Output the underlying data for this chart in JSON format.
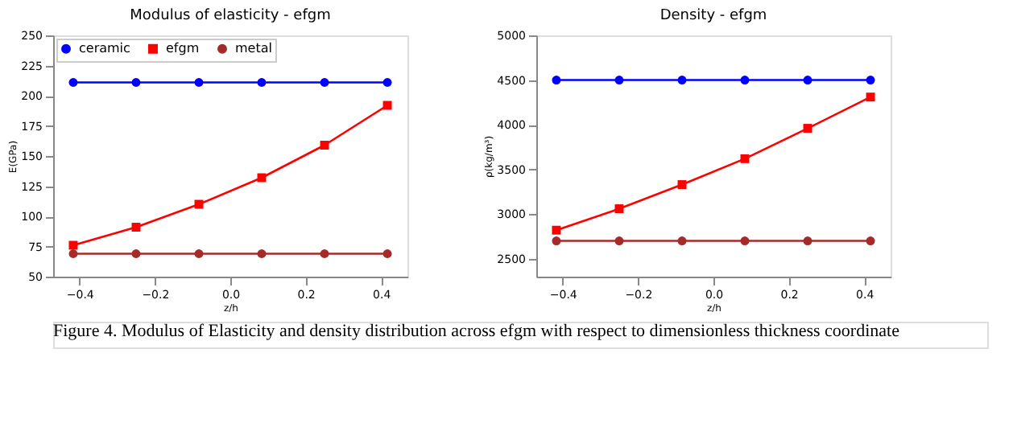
{
  "chart_data": [
    {
      "type": "line",
      "title": "Modulus of elasticity - efgm",
      "xlabel": "z/h",
      "ylabel": "E(GPa)",
      "x": [
        -0.4167,
        -0.25,
        -0.0833,
        0.0833,
        0.25,
        0.4167
      ],
      "xlim": [
        -0.47,
        0.47
      ],
      "xticks": [
        -0.4,
        -0.2,
        {
          "value": 0,
          "label": "0.0"
        },
        0.2,
        0.4
      ],
      "ylim": [
        50,
        250
      ],
      "yticks": [
        50,
        75,
        100,
        125,
        150,
        175,
        200,
        225,
        250
      ],
      "grid": false,
      "legend": "top left",
      "series": [
        {
          "name": "ceramic",
          "color": "#0000ff",
          "marker": "circle",
          "values": [
            211,
            211,
            211,
            211,
            211,
            211
          ]
        },
        {
          "name": "efgm",
          "color": "#ff0000",
          "marker": "square",
          "values": [
            76,
            91,
            110,
            132,
            159,
            192
          ]
        },
        {
          "name": "metal",
          "color": "#a52a2a",
          "marker": "circle",
          "values": [
            69,
            69,
            69,
            69,
            69,
            69
          ]
        }
      ],
      "annotations": [
        "Figure 4. Modulus of Elasticity and density distribution across efgm with respect to dimensionless thickness coordinate"
      ]
    },
    {
      "type": "line",
      "title": "Density - efgm",
      "xlabel": "z/h",
      "ylabel": "ρ(kg/m³)",
      "x": [
        -0.4167,
        -0.25,
        -0.0833,
        0.0833,
        0.25,
        0.4167
      ],
      "xlim": [
        -0.47,
        0.47
      ],
      "xticks": [
        -0.4,
        -0.2,
        {
          "value": 0,
          "label": "0.0"
        },
        0.2,
        0.4
      ],
      "ylim": [
        2300,
        5000
      ],
      "yticks": [
        2500,
        3000,
        3500,
        4000,
        4500,
        5000
      ],
      "grid": false,
      "legend": "top left",
      "series": [
        {
          "name": "ceramic",
          "color": "#0000ff",
          "marker": "circle",
          "values": [
            4500,
            4500,
            4500,
            4500,
            4500,
            4500
          ]
        },
        {
          "name": "efgm",
          "color": "#ff0000",
          "marker": "square",
          "values": [
            2820,
            3060,
            3330,
            3620,
            3960,
            4310
          ]
        },
        {
          "name": "metal",
          "color": "#a52a2a",
          "marker": "circle",
          "values": [
            2700,
            2700,
            2700,
            2700,
            2700,
            2700
          ]
        }
      ]
    }
  ]
}
